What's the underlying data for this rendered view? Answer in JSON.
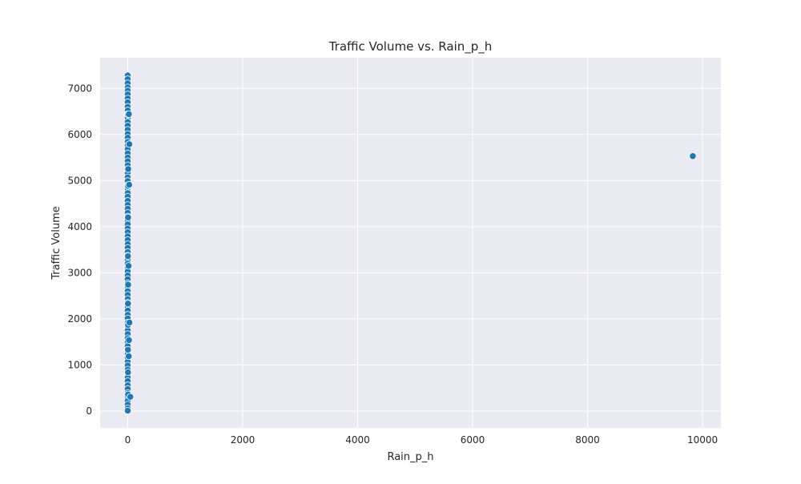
{
  "chart_data": {
    "type": "scatter",
    "title": "Traffic Volume vs. Rain_p_h",
    "xlabel": "Rain_p_h",
    "ylabel": "Traffic Volume",
    "xlim": [
      -480,
      10320
    ],
    "ylim": [
      -365,
      7665
    ],
    "xticks": [
      0,
      2000,
      4000,
      6000,
      8000,
      10000
    ],
    "yticks": [
      0,
      1000,
      2000,
      3000,
      4000,
      5000,
      6000,
      7000
    ],
    "grid": true,
    "style": {
      "background": "#eaeaf2",
      "grid_color": "#ffffff",
      "marker_color": "#1f77b4",
      "marker_edge": "#ffffff"
    },
    "series": [
      {
        "points": [
          [
            0,
            7280
          ],
          [
            0,
            7200
          ],
          [
            0,
            7110
          ],
          [
            0,
            7020
          ],
          [
            0,
            6950
          ],
          [
            0,
            6870
          ],
          [
            0,
            6780
          ],
          [
            0,
            6700
          ],
          [
            0,
            6600
          ],
          [
            0,
            6520
          ],
          [
            0,
            6440
          ],
          [
            0,
            6360
          ],
          [
            0,
            6270
          ],
          [
            0,
            6190
          ],
          [
            0,
            6100
          ],
          [
            0,
            6010
          ],
          [
            0,
            5930
          ],
          [
            0,
            5840
          ],
          [
            0,
            5760
          ],
          [
            0,
            5680
          ],
          [
            0,
            5590
          ],
          [
            0,
            5500
          ],
          [
            0,
            5420
          ],
          [
            0,
            5330
          ],
          [
            0,
            5250
          ],
          [
            0,
            5160
          ],
          [
            0,
            5070
          ],
          [
            0,
            4990
          ],
          [
            0,
            4900
          ],
          [
            0,
            4820
          ],
          [
            0,
            4730
          ],
          [
            0,
            4650
          ],
          [
            0,
            4560
          ],
          [
            0,
            4470
          ],
          [
            0,
            4390
          ],
          [
            0,
            4300
          ],
          [
            0,
            4220
          ],
          [
            0,
            4130
          ],
          [
            0,
            4050
          ],
          [
            0,
            3960
          ],
          [
            0,
            3880
          ],
          [
            0,
            3790
          ],
          [
            0,
            3710
          ],
          [
            0,
            3620
          ],
          [
            0,
            3540
          ],
          [
            0,
            3450
          ],
          [
            0,
            3370
          ],
          [
            0,
            3280
          ],
          [
            0,
            3200
          ],
          [
            0,
            3110
          ],
          [
            0,
            3030
          ],
          [
            0,
            2940
          ],
          [
            0,
            2860
          ],
          [
            0,
            2770
          ],
          [
            0,
            2690
          ],
          [
            0,
            2600
          ],
          [
            0,
            2520
          ],
          [
            0,
            2430
          ],
          [
            0,
            2350
          ],
          [
            0,
            2260
          ],
          [
            0,
            2180
          ],
          [
            0,
            2090
          ],
          [
            0,
            2010
          ],
          [
            0,
            1920
          ],
          [
            0,
            1840
          ],
          [
            0,
            1750
          ],
          [
            0,
            1670
          ],
          [
            0,
            1580
          ],
          [
            0,
            1500
          ],
          [
            0,
            1410
          ],
          [
            0,
            1330
          ],
          [
            0,
            1240
          ],
          [
            0,
            1160
          ],
          [
            0,
            1070
          ],
          [
            0,
            990
          ],
          [
            0,
            900
          ],
          [
            0,
            820
          ],
          [
            0,
            730
          ],
          [
            0,
            650
          ],
          [
            0,
            560
          ],
          [
            0,
            480
          ],
          [
            0,
            390
          ],
          [
            0,
            310
          ],
          [
            0,
            220
          ],
          [
            0,
            140
          ],
          [
            0,
            60
          ],
          [
            0,
            10
          ],
          [
            5,
            6430
          ],
          [
            8,
            5250
          ],
          [
            5,
            4880
          ],
          [
            6,
            4200
          ],
          [
            4,
            3360
          ],
          [
            7,
            2740
          ],
          [
            5,
            2330
          ],
          [
            6,
            1870
          ],
          [
            4,
            1330
          ],
          [
            5,
            840
          ],
          [
            6,
            360
          ],
          [
            20,
            6440
          ],
          [
            25,
            4910
          ],
          [
            30,
            1920
          ],
          [
            22,
            1540
          ],
          [
            18,
            1190
          ],
          [
            45,
            310
          ],
          [
            28,
            5790
          ],
          [
            15,
            3150
          ],
          [
            9831,
            5530
          ]
        ]
      }
    ]
  }
}
